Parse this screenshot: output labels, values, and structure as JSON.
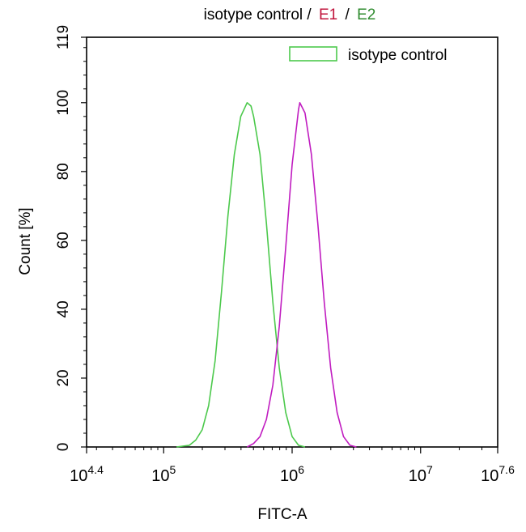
{
  "chart_data": {
    "type": "line",
    "title_parts": [
      {
        "text": "isotype control /",
        "color": "#000000"
      },
      {
        "text": "E1",
        "color": "#c0143c"
      },
      {
        "text": "/",
        "color": "#000000"
      },
      {
        "text": "E2",
        "color": "#2e8b2e"
      }
    ],
    "xlabel": "FITC-A",
    "ylabel": "Count [%]",
    "x_scale": "log10",
    "xlim": [
      25118.86,
      39810717.06
    ],
    "ylim": [
      0,
      119
    ],
    "y_ticks": [
      0,
      20,
      40,
      60,
      80,
      100,
      119
    ],
    "y_tick_labels": [
      "0",
      "20",
      "40",
      "60",
      "80",
      "100",
      "119"
    ],
    "x_ticks": [
      {
        "value": 25118.86,
        "base": "10",
        "exp": "4.4"
      },
      {
        "value": 100000,
        "base": "10",
        "exp": "5"
      },
      {
        "value": 1000000,
        "base": "10",
        "exp": "6"
      },
      {
        "value": 10000000,
        "base": "10",
        "exp": "7"
      },
      {
        "value": 39810717.06,
        "base": "10",
        "exp": "7.6"
      }
    ],
    "legend": {
      "position": "top-right",
      "entries": [
        {
          "label": "isotype control",
          "color": "#4cc94c"
        }
      ]
    },
    "series": [
      {
        "name": "isotype control",
        "color": "#4cc94c",
        "x": [
          125893,
          158489,
          177828,
          199526,
          223872,
          251189,
          281838,
          316228,
          354813,
          398107,
          446684,
          478630,
          501187,
          562341,
          630957,
          707946,
          794328,
          891251,
          1000000,
          1122018,
          1258925
        ],
        "y": [
          0,
          0.5,
          2,
          5,
          12,
          25,
          45,
          67,
          85,
          96,
          100,
          99,
          96,
          85,
          65,
          42,
          23,
          10,
          3,
          0.5,
          0
        ]
      },
      {
        "name": "",
        "color": "#c01cc0",
        "x": [
          446684,
          501187,
          562341,
          630957,
          707946,
          794328,
          891251,
          1000000,
          1122018,
          1148154,
          1258925,
          1412538,
          1584893,
          1778279,
          1995262,
          2238721,
          2511886,
          2818383,
          3162278
        ],
        "y": [
          0,
          1,
          3,
          8,
          18,
          35,
          58,
          82,
          98,
          100,
          97,
          85,
          65,
          42,
          23,
          10,
          3,
          0.5,
          0
        ]
      }
    ]
  }
}
